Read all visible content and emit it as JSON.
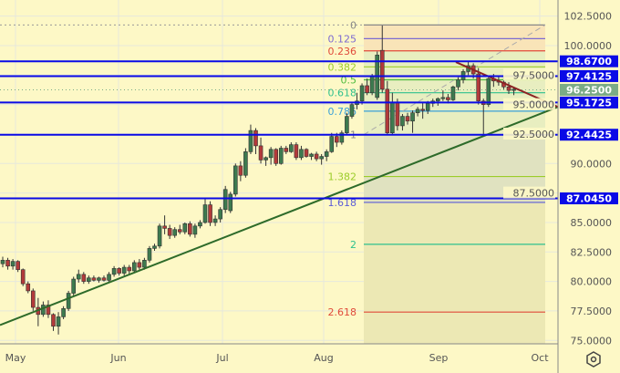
{
  "chart_data": {
    "type": "candlestick",
    "background": "#fdf8c6",
    "grid": true,
    "y_axis": {
      "position": "right",
      "range": [
        75,
        102.5
      ],
      "tick_labels": [
        "102.5000",
        "100.0000",
        "97.5000",
        "95.0000",
        "92.5000",
        "90.0000",
        "87.5000",
        "85.0000",
        "82.5000",
        "80.0000",
        "77.5000",
        "75.0000"
      ],
      "ticks": [
        102.5,
        100,
        97.5,
        95,
        92.5,
        90,
        87.5,
        85,
        82.5,
        80,
        77.5,
        75
      ]
    },
    "x_axis": {
      "tick_labels": [
        "May",
        "Jun",
        "Jul",
        "Aug",
        "Sep",
        "Oct"
      ]
    },
    "up_color": "#3d7a4f",
    "down_color": "#b23a3a",
    "candles": [
      [
        81.5,
        82.1,
        81.2,
        81.8
      ],
      [
        81.8,
        82.0,
        81.0,
        81.3
      ],
      [
        81.3,
        81.9,
        81.0,
        81.7
      ],
      [
        81.7,
        81.8,
        80.8,
        81.0
      ],
      [
        81.0,
        81.1,
        79.6,
        79.8
      ],
      [
        79.8,
        80.0,
        79.0,
        79.2
      ],
      [
        79.2,
        79.4,
        77.5,
        77.8
      ],
      [
        77.8,
        78.6,
        76.2,
        77.2
      ],
      [
        77.2,
        78.3,
        77.0,
        78.0
      ],
      [
        78.0,
        78.4,
        76.9,
        77.2
      ],
      [
        77.2,
        77.3,
        75.8,
        76.2
      ],
      [
        76.2,
        77.4,
        75.5,
        77.0
      ],
      [
        77.0,
        77.9,
        76.8,
        77.7
      ],
      [
        77.7,
        79.2,
        77.5,
        79.0
      ],
      [
        79.0,
        80.4,
        78.8,
        80.2
      ],
      [
        80.2,
        81.0,
        79.9,
        80.6
      ],
      [
        80.6,
        80.8,
        79.8,
        80.0
      ],
      [
        80.0,
        80.5,
        79.8,
        80.3
      ],
      [
        80.3,
        80.5,
        80.0,
        80.1
      ],
      [
        80.1,
        80.4,
        79.9,
        80.3
      ],
      [
        80.3,
        80.5,
        80.0,
        80.1
      ],
      [
        80.1,
        80.8,
        79.9,
        80.6
      ],
      [
        80.6,
        81.3,
        80.4,
        81.1
      ],
      [
        81.1,
        81.2,
        80.5,
        80.7
      ],
      [
        80.7,
        81.4,
        80.5,
        81.2
      ],
      [
        81.2,
        81.4,
        80.6,
        80.9
      ],
      [
        80.9,
        81.8,
        80.7,
        81.6
      ],
      [
        81.6,
        81.9,
        81.0,
        81.2
      ],
      [
        81.2,
        82.0,
        81.0,
        81.8
      ],
      [
        81.8,
        83.0,
        81.6,
        82.8
      ],
      [
        82.8,
        83.2,
        82.6,
        83.0
      ],
      [
        83.0,
        84.9,
        82.8,
        84.7
      ],
      [
        84.7,
        85.6,
        84.0,
        84.5
      ],
      [
        84.5,
        84.8,
        83.6,
        83.9
      ],
      [
        83.9,
        84.6,
        83.7,
        84.4
      ],
      [
        84.4,
        84.8,
        84.0,
        84.2
      ],
      [
        84.2,
        85.0,
        84.0,
        84.9
      ],
      [
        84.9,
        85.1,
        83.8,
        84.0
      ],
      [
        84.0,
        84.9,
        83.7,
        84.7
      ],
      [
        84.7,
        85.2,
        84.5,
        85.0
      ],
      [
        85.0,
        87.0,
        84.9,
        86.5
      ],
      [
        86.5,
        86.8,
        84.7,
        85.0
      ],
      [
        85.0,
        85.6,
        84.7,
        85.3
      ],
      [
        85.3,
        86.3,
        85.0,
        86.1
      ],
      [
        86.1,
        88.1,
        85.8,
        87.8
      ],
      [
        86.0,
        87.6,
        85.8,
        87.4
      ],
      [
        87.4,
        90.0,
        87.2,
        89.8
      ],
      [
        89.8,
        90.2,
        88.5,
        89.0
      ],
      [
        89.0,
        91.3,
        88.8,
        91.0
      ],
      [
        91.0,
        93.3,
        90.8,
        92.8
      ],
      [
        92.8,
        93.0,
        90.8,
        91.5
      ],
      [
        91.5,
        92.2,
        90.0,
        90.3
      ],
      [
        90.3,
        90.6,
        89.8,
        90.5
      ],
      [
        90.5,
        91.4,
        89.9,
        91.2
      ],
      [
        91.2,
        91.3,
        89.8,
        90.0
      ],
      [
        90.0,
        91.5,
        89.9,
        91.3
      ],
      [
        91.3,
        91.5,
        90.8,
        91.0
      ],
      [
        91.0,
        91.8,
        90.9,
        91.6
      ],
      [
        91.6,
        91.8,
        90.3,
        90.5
      ],
      [
        90.5,
        91.5,
        90.3,
        91.2
      ],
      [
        91.2,
        91.3,
        90.5,
        90.6
      ],
      [
        90.6,
        90.9,
        90.3,
        90.8
      ],
      [
        90.8,
        91.0,
        90.2,
        90.4
      ],
      [
        90.4,
        90.8,
        89.9,
        90.6
      ],
      [
        90.6,
        91.2,
        90.2,
        91.0
      ],
      [
        91.0,
        92.6,
        90.9,
        92.3
      ],
      [
        92.3,
        92.6,
        91.4,
        91.8
      ],
      [
        91.8,
        92.8,
        91.6,
        92.6
      ],
      [
        92.6,
        94.3,
        92.4,
        94.0
      ],
      [
        94.0,
        95.2,
        93.8,
        95.0
      ],
      [
        95.0,
        96.0,
        94.6,
        95.3
      ],
      [
        95.3,
        96.8,
        95.0,
        96.6
      ],
      [
        96.6,
        97.2,
        95.8,
        96.0
      ],
      [
        96.0,
        97.6,
        95.8,
        97.4
      ],
      [
        95.6,
        99.5,
        95.4,
        99.2
      ],
      [
        99.6,
        101.7,
        96.0,
        96.3
      ],
      [
        96.3,
        97.0,
        92.4,
        92.6
      ],
      [
        92.6,
        96.0,
        92.5,
        95.2
      ],
      [
        95.2,
        95.5,
        92.8,
        93.2
      ],
      [
        93.2,
        94.2,
        92.8,
        94.0
      ],
      [
        94.0,
        94.3,
        93.3,
        93.6
      ],
      [
        93.6,
        94.5,
        92.6,
        94.3
      ],
      [
        94.3,
        94.8,
        94.0,
        94.6
      ],
      [
        94.6,
        95.2,
        93.8,
        94.5
      ],
      [
        94.5,
        95.3,
        94.2,
        95.1
      ],
      [
        95.1,
        95.5,
        94.8,
        95.3
      ],
      [
        95.3,
        95.6,
        94.9,
        95.5
      ],
      [
        95.5,
        96.2,
        95.3,
        95.6
      ],
      [
        95.6,
        95.9,
        95.1,
        95.4
      ],
      [
        95.4,
        96.6,
        95.3,
        96.5
      ],
      [
        96.5,
        97.3,
        96.2,
        97.1
      ],
      [
        97.1,
        98.0,
        96.8,
        97.8
      ],
      [
        97.8,
        98.7,
        97.5,
        98.3
      ],
      [
        98.3,
        98.5,
        97.2,
        97.6
      ],
      [
        97.6,
        98.1,
        95.0,
        95.3
      ],
      [
        95.3,
        95.5,
        92.4,
        95.0
      ],
      [
        95.0,
        97.3,
        94.8,
        97.2
      ],
      [
        97.2,
        97.6,
        96.5,
        97.0
      ],
      [
        97.0,
        97.4,
        96.6,
        96.9
      ],
      [
        96.9,
        97.5,
        96.3,
        96.5
      ],
      [
        96.5,
        96.9,
        95.9,
        96.2
      ],
      [
        96.2,
        96.5,
        95.8,
        96.3
      ]
    ],
    "horizontal_levels": [
      {
        "label": "98.6700",
        "value": 98.67,
        "color": "#0a0ae6"
      },
      {
        "label": "97.4125",
        "value": 97.4125,
        "color": "#0a0ae6"
      },
      {
        "label": "95.1725",
        "value": 95.1725,
        "color": "#0a0ae6"
      },
      {
        "label": "92.4425",
        "value": 92.4425,
        "color": "#0a0ae6"
      },
      {
        "label": "87.0450",
        "value": 87.045,
        "color": "#0a0ae6"
      }
    ],
    "last_price": {
      "label": "96.2500",
      "value": 96.25,
      "color": "#7aab86"
    },
    "fibonacci": {
      "start_price": 92.45,
      "end_price": 101.75,
      "levels": [
        {
          "label": "0",
          "ratio": 0,
          "color": "#888888"
        },
        {
          "label": "0.125",
          "ratio": 0.125,
          "color": "#7d6bd1"
        },
        {
          "label": "0.236",
          "ratio": 0.236,
          "color": "#e04a3a"
        },
        {
          "label": "0.382",
          "ratio": 0.382,
          "color": "#9ccc2a"
        },
        {
          "label": "0.5",
          "ratio": 0.5,
          "color": "#4cbb3c"
        },
        {
          "label": "0.618",
          "ratio": 0.618,
          "color": "#2fc18e"
        },
        {
          "label": "0.786",
          "ratio": 0.786,
          "color": "#3aa0d8"
        },
        {
          "label": "1",
          "ratio": 1,
          "color": "#888888"
        },
        {
          "label": "1.382",
          "ratio": 1.382,
          "color": "#9ccc2a"
        },
        {
          "label": "1.618",
          "ratio": 1.618,
          "color": "#5b5bd6"
        },
        {
          "label": "2",
          "ratio": 2,
          "color": "#2fc18e"
        },
        {
          "label": "2.618",
          "ratio": 2.618,
          "color": "#e04a3a"
        }
      ]
    },
    "trend_lines": [
      {
        "name": "support",
        "color": "#2e6b2a",
        "from": 76.3,
        "to": 94.8
      },
      {
        "name": "resistance",
        "color": "#8b2323",
        "from": 98.6,
        "to": 94.8
      }
    ]
  },
  "toolbar": {
    "settings_icon": "settings-hexagon-icon"
  }
}
